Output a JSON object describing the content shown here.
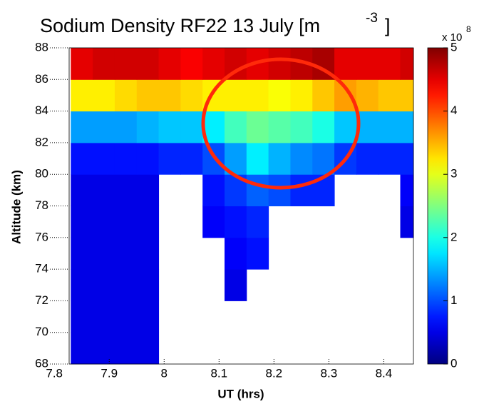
{
  "chart_data": {
    "type": "heatmap",
    "title": "Sodium Density RF22 13 July [m",
    "title_superscript": "-3",
    "title_end": "]",
    "x_label": "UT (hrs)",
    "y_label": "Altitude (km)",
    "colorbar_multiplier": "x 10",
    "colorbar_exponent": "8",
    "colormap": "jet",
    "x_edges": [
      7.83,
      7.87,
      7.91,
      7.95,
      7.99,
      8.03,
      8.07,
      8.11,
      8.15,
      8.19,
      8.23,
      8.27,
      8.31,
      8.35,
      8.39,
      8.43,
      8.454
    ],
    "y_edges": [
      68,
      70,
      72,
      74,
      76,
      78,
      80,
      82,
      84,
      86,
      88
    ],
    "z": [
      [
        0.5,
        0.5,
        0.5,
        0.5,
        null,
        null,
        null,
        null,
        null,
        null,
        null,
        null,
        null,
        null,
        null,
        null
      ],
      [
        0.5,
        0.5,
        0.5,
        0.5,
        null,
        null,
        null,
        null,
        null,
        null,
        null,
        null,
        null,
        null,
        null,
        null
      ],
      [
        0.5,
        0.5,
        0.5,
        0.5,
        null,
        null,
        null,
        0.5,
        null,
        null,
        null,
        null,
        null,
        null,
        null,
        null
      ],
      [
        0.5,
        0.5,
        0.5,
        0.5,
        null,
        null,
        null,
        0.6,
        0.7,
        null,
        null,
        null,
        null,
        null,
        null,
        null
      ],
      [
        0.5,
        0.5,
        0.5,
        0.5,
        null,
        null,
        0.6,
        0.7,
        0.8,
        null,
        null,
        null,
        null,
        null,
        null,
        0.5
      ],
      [
        0.5,
        0.5,
        0.5,
        0.5,
        null,
        null,
        0.7,
        0.9,
        1.1,
        1.0,
        0.8,
        0.8,
        null,
        null,
        null,
        0.6
      ],
      [
        0.7,
        0.7,
        0.7,
        0.7,
        0.8,
        0.8,
        1.0,
        1.4,
        1.8,
        1.5,
        1.3,
        1.2,
        0.9,
        0.8,
        0.8,
        0.8
      ],
      [
        1.4,
        1.4,
        1.4,
        1.5,
        1.6,
        1.6,
        1.8,
        2.2,
        2.4,
        2.3,
        2.2,
        2.0,
        1.6,
        1.5,
        1.5,
        1.5
      ],
      [
        3.2,
        3.2,
        3.3,
        3.4,
        3.4,
        3.3,
        3.2,
        3.2,
        3.2,
        3.1,
        3.2,
        3.4,
        3.6,
        3.5,
        3.4,
        3.4
      ],
      [
        4.5,
        4.6,
        4.6,
        4.6,
        4.5,
        4.4,
        4.5,
        4.6,
        4.5,
        4.6,
        4.7,
        4.8,
        4.5,
        4.5,
        4.5,
        4.6
      ]
    ],
    "xlim": [
      7.827,
      8.454
    ],
    "ylim": [
      68,
      88
    ],
    "zlim": [
      0,
      5
    ],
    "xticks": [
      7.8,
      7.9,
      8,
      8.1,
      8.2,
      8.3,
      8.4
    ],
    "yticks": [
      68,
      70,
      72,
      74,
      76,
      78,
      80,
      82,
      84,
      86,
      88
    ],
    "zticks": [
      0,
      1,
      2,
      3,
      4,
      5
    ]
  }
}
